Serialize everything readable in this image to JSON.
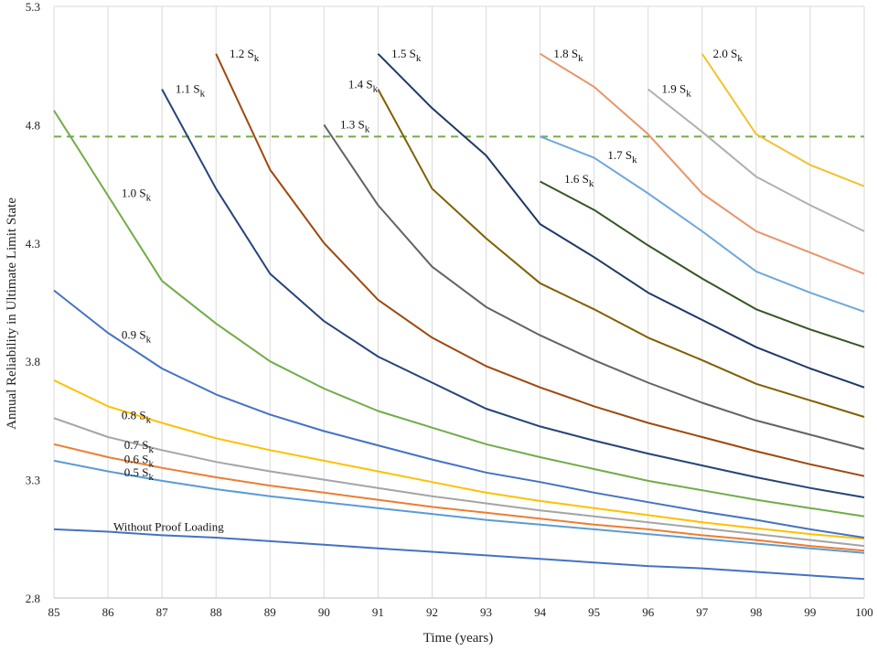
{
  "chart_data": {
    "type": "line",
    "title": "",
    "xlabel": "Time (years)",
    "ylabel": "Annual Reliability  in  Ultimate  Limit  State",
    "xlim": [
      85,
      100
    ],
    "ylim": [
      2.8,
      5.3
    ],
    "xticks": [
      "85",
      "86",
      "87",
      "88",
      "89",
      "90",
      "91",
      "92",
      "93",
      "94",
      "95",
      "96",
      "97",
      "98",
      "99",
      "100"
    ],
    "yticks": [
      "2.8",
      "3.3",
      "3.8",
      "4.3",
      "4.8",
      "5.3"
    ],
    "ytick_values": [
      2.8,
      3.3,
      3.8,
      4.3,
      4.8,
      5.3
    ],
    "grid": "vertical",
    "reference_line": {
      "y": 4.75,
      "style": "dashed",
      "color": "#70ad47"
    },
    "series": [
      {
        "name": "Without Proof Loading",
        "label": "Without Proof Loading",
        "color": "#4472c4",
        "x": [
          85,
          86,
          87,
          88,
          89,
          90,
          91,
          92,
          93,
          94,
          95,
          96,
          97,
          98,
          99,
          100
        ],
        "values": [
          3.09,
          3.08,
          3.065,
          3.055,
          3.04,
          3.025,
          3.01,
          2.995,
          2.98,
          2.965,
          2.95,
          2.935,
          2.925,
          2.91,
          2.895,
          2.88
        ]
      },
      {
        "name": "0.5 Sk",
        "label": "0.5 S",
        "color": "#5b9bd5",
        "x": [
          85,
          86,
          87,
          88,
          89,
          90,
          91,
          92,
          93,
          94,
          95,
          96,
          97,
          98,
          99,
          100
        ],
        "values": [
          3.38,
          3.335,
          3.295,
          3.26,
          3.23,
          3.205,
          3.18,
          3.155,
          3.13,
          3.11,
          3.09,
          3.07,
          3.05,
          3.03,
          3.01,
          2.99
        ]
      },
      {
        "name": "0.6 Sk",
        "label": "0.6 S",
        "color": "#ed7d31",
        "x": [
          85,
          86,
          87,
          88,
          89,
          90,
          91,
          92,
          93,
          94,
          95,
          96,
          97,
          98,
          99,
          100
        ],
        "values": [
          3.45,
          3.395,
          3.35,
          3.31,
          3.275,
          3.245,
          3.215,
          3.185,
          3.16,
          3.135,
          3.11,
          3.09,
          3.065,
          3.045,
          3.02,
          3.0
        ]
      },
      {
        "name": "0.7 Sk",
        "label": "0.7 S",
        "color": "#a5a5a5",
        "x": [
          85,
          86,
          87,
          88,
          89,
          90,
          91,
          92,
          93,
          94,
          95,
          96,
          97,
          98,
          99,
          100
        ],
        "values": [
          3.56,
          3.48,
          3.425,
          3.375,
          3.335,
          3.3,
          3.265,
          3.23,
          3.2,
          3.17,
          3.145,
          3.12,
          3.095,
          3.07,
          3.045,
          3.02
        ]
      },
      {
        "name": "0.8 Sk",
        "label": "0.8 S",
        "color": "#ffc000",
        "x": [
          85,
          86,
          87,
          88,
          89,
          90,
          91,
          92,
          93,
          94,
          95,
          96,
          97,
          98,
          99,
          100
        ],
        "values": [
          3.72,
          3.61,
          3.54,
          3.475,
          3.425,
          3.38,
          3.335,
          3.29,
          3.245,
          3.21,
          3.18,
          3.15,
          3.12,
          3.095,
          3.07,
          3.05
        ]
      },
      {
        "name": "0.9 Sk",
        "label": "0.9 S",
        "color": "#4472c4",
        "x": [
          85,
          86,
          87,
          88,
          89,
          90,
          91,
          92,
          93,
          94,
          95,
          96,
          97,
          98,
          99,
          100
        ],
        "values": [
          4.1,
          3.92,
          3.77,
          3.66,
          3.575,
          3.505,
          3.445,
          3.385,
          3.33,
          3.29,
          3.245,
          3.205,
          3.165,
          3.13,
          3.09,
          3.055
        ]
      },
      {
        "name": "1.0 Sk",
        "label": "1.0 S",
        "color": "#70ad47",
        "x": [
          85,
          86,
          87,
          88,
          89,
          90,
          91,
          92,
          93,
          94,
          95,
          96,
          97,
          98,
          99,
          100
        ],
        "values": [
          4.86,
          4.5,
          4.14,
          3.96,
          3.8,
          3.685,
          3.59,
          3.52,
          3.45,
          3.395,
          3.345,
          3.295,
          3.255,
          3.215,
          3.18,
          3.145
        ]
      },
      {
        "name": "1.1 Sk",
        "label": "1.1 S",
        "color": "#264478",
        "x": [
          87,
          88,
          89,
          90,
          91,
          92,
          93,
          94,
          95,
          96,
          97,
          98,
          99,
          100
        ],
        "values": [
          4.95,
          4.53,
          4.17,
          3.97,
          3.82,
          3.71,
          3.6,
          3.525,
          3.465,
          3.41,
          3.36,
          3.31,
          3.265,
          3.225
        ]
      },
      {
        "name": "1.2 Sk",
        "label": "1.2 S",
        "color": "#9e480e",
        "x": [
          88,
          89,
          90,
          91,
          92,
          93,
          94,
          95,
          96,
          97,
          98,
          99,
          100
        ],
        "values": [
          5.1,
          4.61,
          4.3,
          4.06,
          3.9,
          3.78,
          3.69,
          3.61,
          3.54,
          3.48,
          3.42,
          3.365,
          3.315
        ]
      },
      {
        "name": "1.3 Sk",
        "label": "1.3 S",
        "color": "#636363",
        "x": [
          90,
          91,
          92,
          93,
          94,
          95,
          96,
          97,
          98,
          99,
          100
        ],
        "values": [
          4.8,
          4.46,
          4.2,
          4.03,
          3.91,
          3.805,
          3.71,
          3.625,
          3.55,
          3.49,
          3.43
        ]
      },
      {
        "name": "1.4 Sk",
        "label": "1.4 S",
        "color": "#7f6000",
        "x": [
          91,
          92,
          93,
          94,
          95,
          96,
          97,
          98,
          99,
          100
        ],
        "values": [
          4.95,
          4.53,
          4.32,
          4.13,
          4.02,
          3.9,
          3.805,
          3.705,
          3.635,
          3.565
        ]
      },
      {
        "name": "1.5 Sk",
        "label": "1.5 S",
        "color": "#203864",
        "x": [
          91,
          92,
          93,
          94,
          95,
          96,
          97,
          98,
          99,
          100
        ],
        "values": [
          5.1,
          4.87,
          4.67,
          4.38,
          4.24,
          4.09,
          3.975,
          3.86,
          3.77,
          3.69
        ]
      },
      {
        "name": "1.6 Sk",
        "label": "1.6 S",
        "color": "#375623",
        "x": [
          94,
          95,
          96,
          97,
          98,
          99,
          100
        ],
        "values": [
          4.56,
          4.44,
          4.29,
          4.15,
          4.02,
          3.935,
          3.86
        ]
      },
      {
        "name": "1.7 Sk",
        "label": "1.7 S",
        "color": "#6fa8dc",
        "x": [
          94,
          95,
          96,
          97,
          98,
          99,
          100
        ],
        "values": [
          4.75,
          4.66,
          4.51,
          4.35,
          4.18,
          4.09,
          4.01
        ]
      },
      {
        "name": "1.8 Sk",
        "label": "1.8 S",
        "color": "#e8956a",
        "x": [
          94,
          95,
          96,
          97,
          98,
          99,
          100
        ],
        "values": [
          5.1,
          4.96,
          4.76,
          4.51,
          4.35,
          4.26,
          4.17
        ]
      },
      {
        "name": "1.9 Sk",
        "label": "1.9 S",
        "color": "#b0b0b0",
        "x": [
          96,
          97,
          98,
          99,
          100
        ],
        "values": [
          4.95,
          4.77,
          4.58,
          4.46,
          4.35
        ]
      },
      {
        "name": "2.0 Sk",
        "label": "2.0 S",
        "color": "#f2c230",
        "x": [
          97,
          98,
          99,
          100
        ],
        "values": [
          5.1,
          4.76,
          4.63,
          4.54
        ]
      }
    ],
    "annotations": [
      {
        "text": "Without Proof Loading",
        "subscript": "",
        "x": 86.1,
        "y": 3.1
      },
      {
        "text": "0.5 S",
        "subscript": "k",
        "x": 86.3,
        "y": 3.33
      },
      {
        "text": "0.6 S",
        "subscript": "k",
        "x": 86.3,
        "y": 3.385
      },
      {
        "text": "0.7 S",
        "subscript": "k",
        "x": 86.3,
        "y": 3.445
      },
      {
        "text": "0.8 S",
        "subscript": "k",
        "x": 86.25,
        "y": 3.57
      },
      {
        "text": "0.9 S",
        "subscript": "k",
        "x": 86.25,
        "y": 3.91
      },
      {
        "text": "1.0 S",
        "subscript": "k",
        "x": 86.25,
        "y": 4.51
      },
      {
        "text": "1.1 S",
        "subscript": "k",
        "x": 87.25,
        "y": 4.95
      },
      {
        "text": "1.2 S",
        "subscript": "k",
        "x": 88.25,
        "y": 5.1
      },
      {
        "text": "1.3 S",
        "subscript": "k",
        "x": 90.3,
        "y": 4.8
      },
      {
        "text": "1.4 S",
        "subscript": "k",
        "x": 90.45,
        "y": 4.97
      },
      {
        "text": "1.5 S",
        "subscript": "k",
        "x": 91.25,
        "y": 5.1
      },
      {
        "text": "1.6 S",
        "subscript": "k",
        "x": 94.45,
        "y": 4.57
      },
      {
        "text": "1.7 S",
        "subscript": "k",
        "x": 95.25,
        "y": 4.67
      },
      {
        "text": "1.8 S",
        "subscript": "k",
        "x": 94.25,
        "y": 5.1
      },
      {
        "text": "1.9 S",
        "subscript": "k",
        "x": 96.25,
        "y": 4.95
      },
      {
        "text": "2.0 S",
        "subscript": "k",
        "x": 97.2,
        "y": 5.1
      }
    ]
  }
}
